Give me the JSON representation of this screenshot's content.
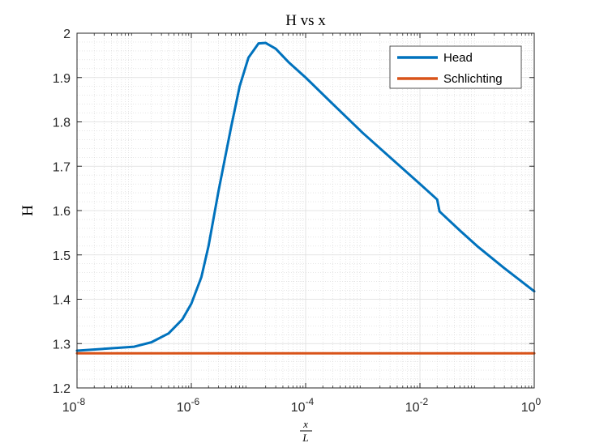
{
  "chart_data": {
    "type": "line",
    "title": "H vs x",
    "xlabel_numerator": "x",
    "xlabel_denominator": "L",
    "ylabel": "H",
    "xscale": "log",
    "xlim": [
      1e-08,
      1
    ],
    "ylim": [
      1.2,
      2.0
    ],
    "grid": "on",
    "legend_placement": "top-right",
    "x_ticks": [
      {
        "base": "10",
        "exp": "-8",
        "value": 1e-08
      },
      {
        "base": "10",
        "exp": "-6",
        "value": 1e-06
      },
      {
        "base": "10",
        "exp": "-4",
        "value": 0.0001
      },
      {
        "base": "10",
        "exp": "-2",
        "value": 0.01
      },
      {
        "base": "10",
        "exp": "0",
        "value": 1
      }
    ],
    "y_ticks": [
      "1.2",
      "1.3",
      "1.4",
      "1.5",
      "1.6",
      "1.7",
      "1.8",
      "1.9",
      "2"
    ],
    "series": [
      {
        "name": "Head",
        "color": "#0072BD",
        "x": [
          1e-08,
          1e-07,
          2e-07,
          4e-07,
          7e-07,
          1e-06,
          1.5e-06,
          2e-06,
          3e-06,
          5e-06,
          7e-06,
          1e-05,
          1.5e-05,
          2e-05,
          3e-05,
          5e-05,
          0.0001,
          0.0003,
          0.001,
          0.003,
          0.01,
          0.02,
          0.022,
          0.05,
          0.1,
          0.3,
          1
        ],
        "y": [
          1.284,
          1.293,
          1.303,
          1.323,
          1.355,
          1.39,
          1.45,
          1.52,
          1.645,
          1.79,
          1.88,
          1.945,
          1.977,
          1.978,
          1.965,
          1.935,
          1.9,
          1.84,
          1.775,
          1.72,
          1.66,
          1.625,
          1.598,
          1.555,
          1.52,
          1.47,
          1.418
        ]
      },
      {
        "name": "Schlichting",
        "color": "#D95319",
        "x": [
          1e-08,
          1
        ],
        "y": [
          1.278,
          1.278
        ]
      }
    ]
  }
}
